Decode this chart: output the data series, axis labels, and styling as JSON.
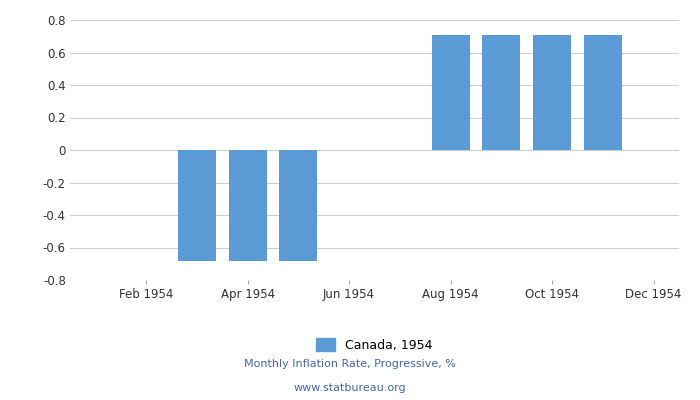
{
  "month_nums": [
    1,
    2,
    3,
    4,
    5,
    6,
    7,
    8,
    9,
    10,
    11,
    12
  ],
  "values": [
    null,
    null,
    -0.68,
    -0.68,
    -0.68,
    null,
    null,
    0.71,
    0.71,
    0.71,
    0.71,
    null
  ],
  "bar_color": "#5b9bd5",
  "ylim": [
    -0.8,
    0.8
  ],
  "yticks": [
    -0.8,
    -0.6,
    -0.4,
    -0.2,
    0.0,
    0.2,
    0.4,
    0.6,
    0.8
  ],
  "xtick_labels": [
    "Feb 1954",
    "Apr 1954",
    "Jun 1954",
    "Aug 1954",
    "Oct 1954",
    "Dec 1954"
  ],
  "xtick_positions": [
    2,
    4,
    6,
    8,
    10,
    12
  ],
  "legend_label": "Canada, 1954",
  "footer_line1": "Monthly Inflation Rate, Progressive, %",
  "footer_line2": "www.statbureau.org",
  "bar_width": 0.75,
  "background_color": "#ffffff",
  "grid_color": "#d0d0d0",
  "tick_label_color": "#333333",
  "footer_color": "#4466aa"
}
